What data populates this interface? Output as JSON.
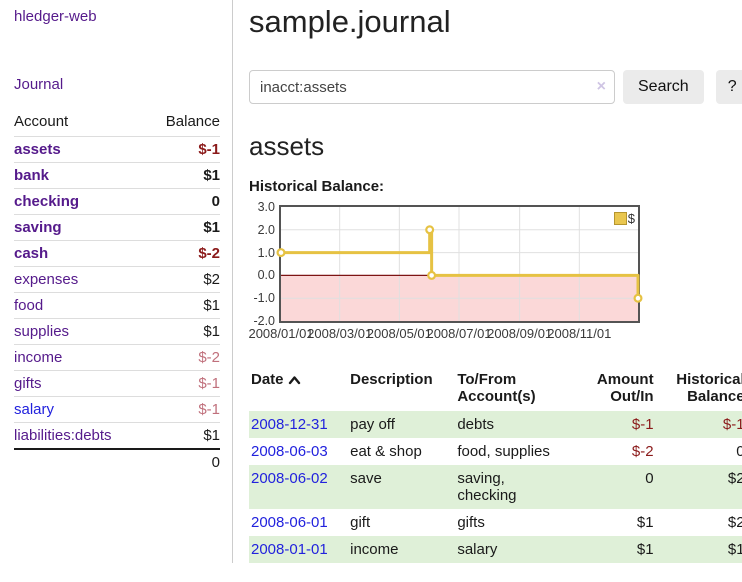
{
  "app": {
    "brand": "hledger-web"
  },
  "sidebar": {
    "journal_link": "Journal",
    "table": {
      "account_header": "Account",
      "balance_header": "Balance",
      "rows": [
        {
          "name": "assets",
          "depth": 1,
          "in_account": true,
          "balance": "$-1",
          "balance_tone": "negative"
        },
        {
          "name": "bank",
          "depth": 2,
          "in_account": true,
          "balance": "$1",
          "balance_tone": "normal"
        },
        {
          "name": "checking",
          "depth": 3,
          "in_account": true,
          "balance": "0",
          "balance_tone": "normal"
        },
        {
          "name": "saving",
          "depth": 3,
          "in_account": true,
          "balance": "$1",
          "balance_tone": "normal"
        },
        {
          "name": "cash",
          "depth": 2,
          "in_account": true,
          "balance": "$-2",
          "balance_tone": "negative"
        },
        {
          "name": "expenses",
          "depth": 1,
          "in_account": false,
          "balance": "$2",
          "balance_tone": "normal"
        },
        {
          "name": "food",
          "depth": 2,
          "in_account": false,
          "balance": "$1",
          "balance_tone": "normal"
        },
        {
          "name": "supplies",
          "depth": 2,
          "in_account": false,
          "balance": "$1",
          "balance_tone": "normal"
        },
        {
          "name": "income",
          "depth": 1,
          "in_account": false,
          "balance": "$-2",
          "balance_tone": "negative-muted"
        },
        {
          "name": "gifts",
          "depth": 2,
          "in_account": false,
          "balance": "$-1",
          "balance_tone": "negative-muted"
        },
        {
          "name": "salary",
          "depth": 2,
          "in_account": false,
          "link_tone": "blue",
          "balance": "$-1",
          "balance_tone": "negative-muted"
        },
        {
          "name": "liabilities:debts",
          "depth": 1,
          "in_account": false,
          "balance": "$1",
          "balance_tone": "normal"
        }
      ],
      "total": "0"
    }
  },
  "header": {
    "title": "sample.journal"
  },
  "search": {
    "value": "inacct:assets",
    "clear_label": "×",
    "search_button": "Search",
    "help_button": "?"
  },
  "account_page": {
    "heading": "assets",
    "chart_title": "Historical Balance:"
  },
  "chart_data": {
    "type": "line",
    "title": "Historical Balance",
    "step": true,
    "grid": true,
    "legend_position": "top-right",
    "legend": [
      {
        "label": "$",
        "color": "#E6C243"
      }
    ],
    "xlim": [
      "2008-01-01",
      "2008-12-31"
    ],
    "ylim": [
      -2,
      3
    ],
    "yticks": [
      {
        "value": 3,
        "label": "3.0"
      },
      {
        "value": 2,
        "label": "2.0"
      },
      {
        "value": 1,
        "label": "1.0"
      },
      {
        "value": 0,
        "label": "0.0"
      },
      {
        "value": -1,
        "label": "-1.0"
      },
      {
        "value": -2,
        "label": "-2.0"
      }
    ],
    "xticks": [
      {
        "date": "2008-01-01",
        "label": "2008/01/01"
      },
      {
        "date": "2008-03-01",
        "label": "2008/03/01"
      },
      {
        "date": "2008-05-01",
        "label": "2008/05/01"
      },
      {
        "date": "2008-07-01",
        "label": "2008/07/01"
      },
      {
        "date": "2008-09-01",
        "label": "2008/09/01"
      },
      {
        "date": "2008-11-01",
        "label": "2008/11/01"
      }
    ],
    "series": [
      {
        "name": "$",
        "color": "#E6C243",
        "points": [
          [
            "2008-01-01",
            1
          ],
          [
            "2008-06-01",
            2
          ],
          [
            "2008-06-03",
            0
          ],
          [
            "2008-12-31",
            -1
          ]
        ]
      }
    ]
  },
  "transactions": {
    "headers": {
      "date": "Date",
      "description": "Description",
      "accounts": "To/From Account(s)",
      "amount": "Amount Out/In",
      "balance": "Historical Balance"
    },
    "rows": [
      {
        "date": "2008-12-31",
        "description": "pay off",
        "accounts": "debts",
        "amount": "$-1",
        "amount_tone": "negative",
        "balance": "$-1",
        "balance_tone": "negative"
      },
      {
        "date": "2008-06-03",
        "description": "eat & shop",
        "accounts": "food, supplies",
        "amount": "$-2",
        "amount_tone": "negative",
        "balance": "0",
        "balance_tone": "normal"
      },
      {
        "date": "2008-06-02",
        "description": "save",
        "accounts": "saving,\nchecking",
        "amount": "0",
        "amount_tone": "normal",
        "balance": "$2",
        "balance_tone": "normal"
      },
      {
        "date": "2008-06-01",
        "description": "gift",
        "accounts": "gifts",
        "amount": "$1",
        "amount_tone": "normal",
        "balance": "$2",
        "balance_tone": "normal"
      },
      {
        "date": "2008-01-01",
        "description": "income",
        "accounts": "salary",
        "amount": "$1",
        "amount_tone": "normal",
        "balance": "$1",
        "balance_tone": "normal"
      }
    ]
  },
  "colors": {
    "link_purple": "#551A8B",
    "link_blue": "#2222DD",
    "negative": "#8B1A1A",
    "negative_muted": "#C0707C",
    "row_stripe_green": "#DFF0D8",
    "chart_line_gold": "#E6C243",
    "chart_negative_fill": "#FBD8D8",
    "chart_zero_line": "#7D1414",
    "chart_grid": "#E0E0E0",
    "chart_border": "#545454"
  }
}
